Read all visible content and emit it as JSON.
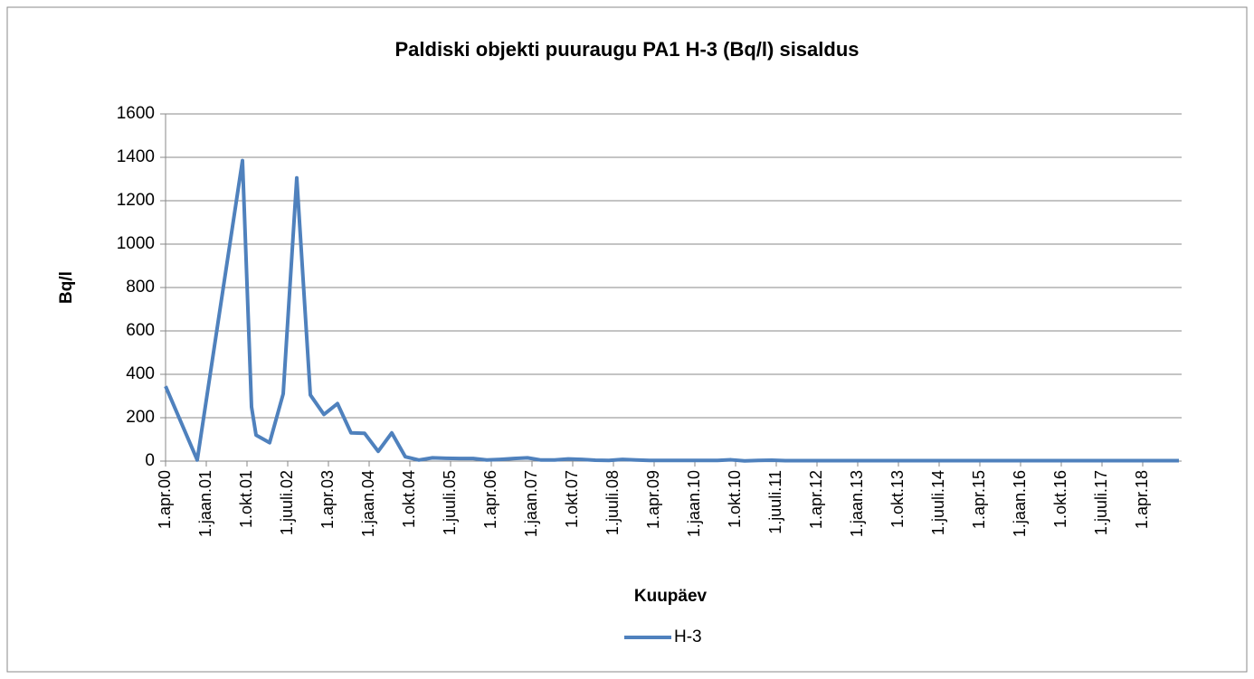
{
  "chart_data": {
    "type": "line",
    "title": "Paldiski objekti puuraugu PA1 H-3 (Bq/l) sisaldus",
    "x_label": "Kuupäev",
    "y_label": "Bq/l",
    "x": [
      "2000-04",
      "2000-11",
      "2001-09",
      "2001-11",
      "2001-12",
      "2002-03",
      "2002-06",
      "2002-09",
      "2002-12",
      "2003-03",
      "2003-06",
      "2003-09",
      "2003-12",
      "2004-03",
      "2004-06",
      "2004-09",
      "2004-12",
      "2005-03",
      "2005-06",
      "2005-09",
      "2005-12",
      "2006-03",
      "2006-06",
      "2006-09",
      "2006-12",
      "2007-03",
      "2007-06",
      "2007-09",
      "2007-12",
      "2008-03",
      "2008-06",
      "2008-09",
      "2008-12",
      "2009-03",
      "2009-06",
      "2009-09",
      "2009-12",
      "2010-03",
      "2010-06",
      "2010-09",
      "2010-12",
      "2011-03",
      "2011-06",
      "2011-09",
      "2011-12",
      "2012-03",
      "2012-06",
      "2012-09",
      "2012-12",
      "2013-03",
      "2013-06",
      "2013-09",
      "2013-12",
      "2014-03",
      "2014-06",
      "2014-09",
      "2014-12",
      "2015-03",
      "2015-06",
      "2015-09",
      "2015-12",
      "2016-03",
      "2016-06",
      "2016-09",
      "2016-12",
      "2017-03",
      "2017-06",
      "2017-09",
      "2017-12",
      "2018-03",
      "2018-06",
      "2018-09",
      "2018-12"
    ],
    "series": [
      {
        "name": "H-3",
        "color": "#4f81bd",
        "values": [
          345,
          5,
          1385,
          250,
          120,
          85,
          310,
          1305,
          305,
          215,
          265,
          130,
          128,
          45,
          130,
          20,
          5,
          15,
          13,
          12,
          12,
          5,
          8,
          12,
          15,
          5,
          5,
          10,
          8,
          4,
          3,
          8,
          5,
          3,
          3,
          3,
          3,
          3,
          3,
          6,
          1,
          3,
          4,
          2,
          2,
          2,
          2,
          2,
          2,
          2,
          2,
          2,
          2,
          2,
          2,
          2,
          2,
          2,
          2,
          2,
          2,
          2,
          2,
          2,
          2,
          2,
          2,
          2,
          2,
          2,
          2,
          2,
          2
        ]
      }
    ],
    "xlim": [
      "2000-04",
      "2018-12"
    ],
    "xticks": [
      {
        "value": "2000-04",
        "label": "1.apr.00"
      },
      {
        "value": "2001-01",
        "label": "1.jaan.01"
      },
      {
        "value": "2001-10",
        "label": "1.okt.01"
      },
      {
        "value": "2002-07",
        "label": "1.juuli.02"
      },
      {
        "value": "2003-04",
        "label": "1.apr.03"
      },
      {
        "value": "2004-01",
        "label": "1.jaan.04"
      },
      {
        "value": "2004-10",
        "label": "1.okt.04"
      },
      {
        "value": "2005-07",
        "label": "1.juuli.05"
      },
      {
        "value": "2006-04",
        "label": "1.apr.06"
      },
      {
        "value": "2007-01",
        "label": "1.jaan.07"
      },
      {
        "value": "2007-10",
        "label": "1.okt.07"
      },
      {
        "value": "2008-07",
        "label": "1.juuli.08"
      },
      {
        "value": "2009-04",
        "label": "1.apr.09"
      },
      {
        "value": "2010-01",
        "label": "1.jaan.10"
      },
      {
        "value": "2010-10",
        "label": "1.okt.10"
      },
      {
        "value": "2011-07",
        "label": "1.juuli.11"
      },
      {
        "value": "2012-04",
        "label": "1.apr.12"
      },
      {
        "value": "2013-01",
        "label": "1.jaan.13"
      },
      {
        "value": "2013-10",
        "label": "1.okt.13"
      },
      {
        "value": "2014-07",
        "label": "1.juuli.14"
      },
      {
        "value": "2015-04",
        "label": "1.apr.15"
      },
      {
        "value": "2016-01",
        "label": "1.jaan.16"
      },
      {
        "value": "2016-10",
        "label": "1.okt.16"
      },
      {
        "value": "2017-07",
        "label": "1.juuli.17"
      },
      {
        "value": "2018-04",
        "label": "1.apr.18"
      }
    ],
    "ylim": [
      0,
      1600
    ],
    "yticks": [
      0,
      200,
      400,
      600,
      800,
      1000,
      1200,
      1400,
      1600
    ],
    "grid": true,
    "legend": "bottom"
  }
}
